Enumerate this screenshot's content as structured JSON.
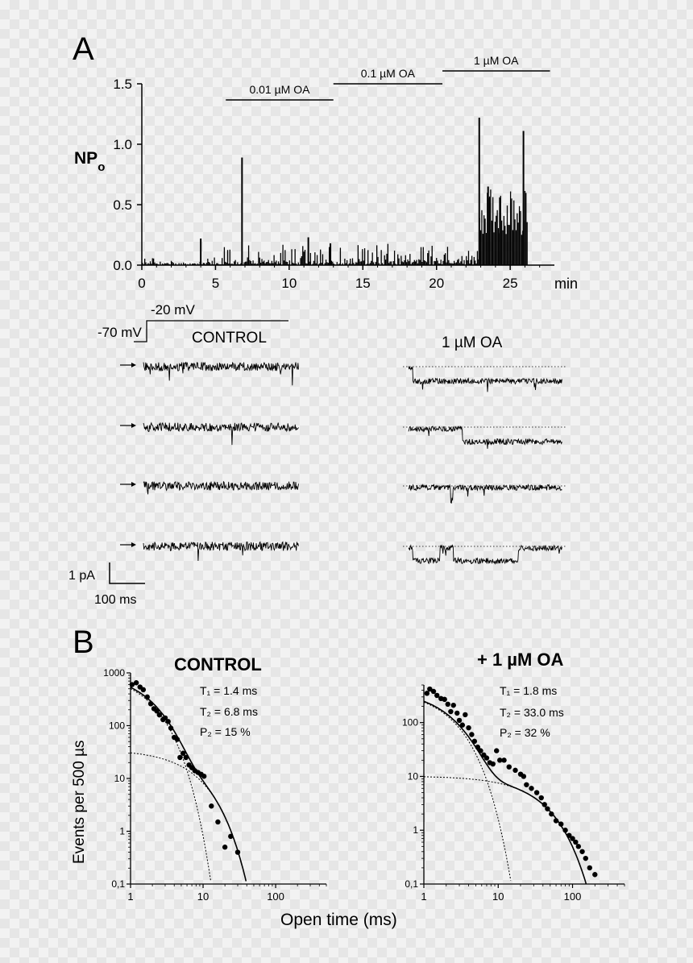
{
  "colors": {
    "ink": "#000000",
    "background": "#f2f2f2"
  },
  "panel_a": {
    "letter": "A",
    "npo_chart": {
      "ylabel_main": "NP",
      "ylabel_sub": "o",
      "x_unit": "min",
      "x_ticks": [
        "0",
        "5",
        "10",
        "15",
        "20",
        "25"
      ],
      "y_ticks": [
        "0.0",
        "0.5",
        "1.0",
        "1.5"
      ],
      "treatments": [
        {
          "label": "0.01 µM OA",
          "start": 5.7,
          "end": 13.0
        },
        {
          "label": "0.1 µM OA",
          "start": 13.0,
          "end": 20.4
        },
        {
          "label": "1 µM OA",
          "start": 20.4,
          "end": 27.7
        }
      ]
    },
    "protocol": {
      "holding": "-70 mV",
      "step": "-20 mV"
    },
    "traces": {
      "control_label": "CONTROL",
      "oa_label": "1 µM OA"
    },
    "scale_bar": {
      "current": "1 pA",
      "time": "100 ms"
    }
  },
  "panel_b": {
    "letter": "B",
    "xlabel": "Open time (ms)",
    "ylabel": "Events per 500 µs",
    "x_ticks": [
      "1",
      "10",
      "100"
    ],
    "y_ticks": [
      "0,1",
      "1",
      "10",
      "100",
      "1000"
    ],
    "control": {
      "title": "CONTROL",
      "t1": "T₁ = 1.4 ms",
      "t2": "T₂ = 6.8 ms",
      "p2": "P₂ = 15 %"
    },
    "oa": {
      "title": "+ 1 µM OA",
      "t1": "T₁ = 1.8 ms",
      "t2": "T₂ = 33.0 ms",
      "p2": "P₂ = 32 %"
    }
  },
  "chart_data": [
    {
      "type": "bar",
      "title": "",
      "xlabel": "min",
      "ylabel": "NPo",
      "xlim": [
        0,
        28
      ],
      "ylim": [
        0,
        1.5
      ],
      "grid": false,
      "x": [
        4.0,
        6.8,
        11.3,
        12.8,
        22.9,
        23.5,
        24.3,
        25.9
      ],
      "values": [
        0.22,
        0.89,
        0.23,
        0.18,
        1.22,
        0.65,
        0.56,
        1.11
      ]
    },
    {
      "type": "scatter",
      "title": "CONTROL",
      "xlabel": "Open time (ms)",
      "ylabel": "Events per 500 µs",
      "xscale": "log",
      "yscale": "log",
      "xlim": [
        1,
        500
      ],
      "ylim": [
        0.1,
        1000
      ],
      "grid": false,
      "series": [
        {
          "x": [
            1.05,
            1.2,
            1.35,
            1.5,
            1.7,
            1.9,
            2.1,
            2.3,
            2.5,
            2.8,
            3.0,
            3.3,
            3.6,
            4.0,
            4.4,
            4.8,
            5.3,
            5.8,
            6.4,
            7.0,
            7.7,
            8.5,
            9.4,
            10.3,
            13,
            16,
            20,
            24,
            30
          ],
          "values": [
            600,
            650,
            540,
            480,
            350,
            260,
            210,
            190,
            160,
            130,
            140,
            120,
            90,
            60,
            55,
            25,
            30,
            25,
            18,
            16,
            14,
            13,
            12,
            11,
            3,
            1.5,
            0.5,
            0.8,
            0.4
          ]
        }
      ],
      "fit": {
        "tau1": 1.4,
        "tau2": 6.8,
        "p2": 0.15
      }
    },
    {
      "type": "scatter",
      "title": "+ 1 µM OA",
      "xlabel": "Open time (ms)",
      "ylabel": "Events per 500 µs",
      "xscale": "log",
      "yscale": "log",
      "xlim": [
        1,
        500
      ],
      "ylim": [
        0.1,
        500
      ],
      "grid": false,
      "series": [
        {
          "x": [
            1.1,
            1.2,
            1.35,
            1.5,
            1.7,
            1.9,
            2.1,
            2.3,
            2.5,
            2.8,
            3.0,
            3.3,
            3.6,
            4.0,
            4.4,
            4.8,
            5.3,
            5.8,
            6.4,
            7.0,
            7.7,
            8.5,
            9.5,
            10.5,
            12,
            14,
            17,
            20,
            22,
            24,
            28,
            33,
            38,
            42,
            46,
            52,
            60,
            70,
            80,
            90,
            100,
            110,
            120,
            135,
            150,
            170,
            200
          ],
          "values": [
            350,
            420,
            380,
            320,
            280,
            270,
            220,
            160,
            210,
            150,
            110,
            90,
            140,
            80,
            60,
            45,
            35,
            30,
            25,
            22,
            18,
            17,
            30,
            20,
            20,
            15,
            13,
            11,
            10,
            7,
            6,
            5,
            4,
            3,
            2.5,
            2,
            1.5,
            1.3,
            1.0,
            0.8,
            0.7,
            0.6,
            0.5,
            0.4,
            0.3,
            0.2,
            0.15
          ]
        }
      ],
      "fit": {
        "tau1": 1.8,
        "tau2": 33.0,
        "p2": 0.32
      }
    }
  ]
}
